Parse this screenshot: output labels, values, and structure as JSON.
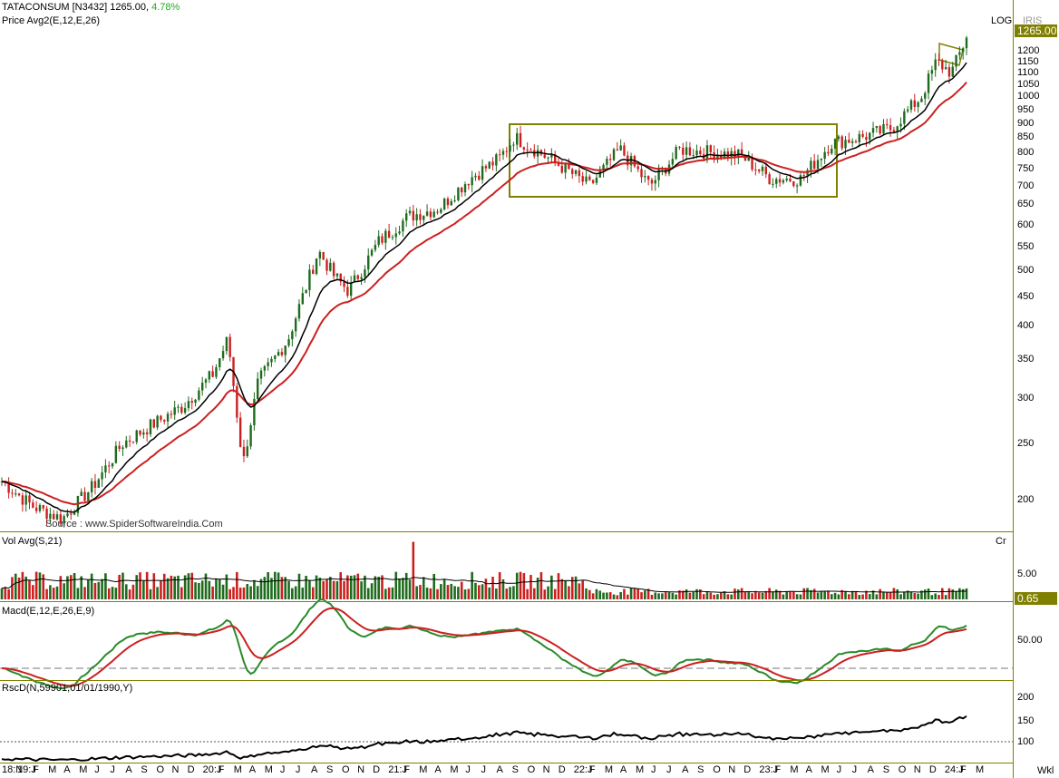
{
  "header": {
    "symbol": "TATACONSUM [N3432]",
    "price": "1265.00,",
    "change": "4.78%",
    "change_color": "#22aa22",
    "price_indicator": "Price  Avg2(E,12,E,26)",
    "log_label": "LOG",
    "brand": "IRIS",
    "last_price_badge": "1265.00"
  },
  "source_note": "Source : www.SpiderSoftwareIndia.Com",
  "volume_panel": {
    "title": "Vol  Avg(S,21)",
    "unit": "Cr",
    "tick": "5.00",
    "last_badge": "0.65"
  },
  "macd_panel": {
    "title": "Macd(E,12,E,26,E,9)",
    "tick": "50.00"
  },
  "rsc_panel": {
    "title": "RscD(N,59901,01/01/1990,Y)",
    "ticks": [
      "200",
      "150",
      "100"
    ]
  },
  "price_ticks": [
    "1200",
    "1150",
    "1100",
    "1050",
    "1000",
    "950",
    "900",
    "850",
    "800",
    "750",
    "700",
    "650",
    "600",
    "550",
    "500",
    "450",
    "400",
    "350",
    "300",
    "250",
    "200"
  ],
  "x_axis": {
    "labels": [
      "18:N",
      "19:J",
      "F",
      "M",
      "A",
      "M",
      "J",
      "J",
      "A",
      "S",
      "O",
      "N",
      "D",
      "20:J",
      "F",
      "M",
      "A",
      "M",
      "J",
      "J",
      "A",
      "S",
      "O",
      "N",
      "D",
      "21:J",
      "F",
      "M",
      "A",
      "M",
      "J",
      "J",
      "A",
      "S",
      "O",
      "N",
      "D",
      "22:J",
      "F",
      "M",
      "A",
      "M",
      "J",
      "J",
      "A",
      "S",
      "O",
      "N",
      "D",
      "23:J",
      "F",
      "M",
      "A",
      "M",
      "J",
      "J",
      "A",
      "S",
      "O",
      "N",
      "D",
      "24:J",
      "F",
      "M"
    ],
    "period_label": "Wkl"
  },
  "chart_data": {
    "type": "line",
    "scale": "log",
    "price_range": [
      180,
      1300
    ],
    "series": [
      {
        "name": "Price",
        "color": "#000000",
        "x": [
          "2018-11",
          "2019-01",
          "2019-03",
          "2019-05",
          "2019-07",
          "2019-09",
          "2019-11",
          "2020-01",
          "2020-02",
          "2020-03",
          "2020-04",
          "2020-06",
          "2020-08",
          "2020-09",
          "2020-10",
          "2020-12",
          "2021-02",
          "2021-04",
          "2021-06",
          "2021-08",
          "2021-09",
          "2021-10",
          "2021-12",
          "2022-02",
          "2022-04",
          "2022-06",
          "2022-08",
          "2022-10",
          "2022-12",
          "2023-02",
          "2023-04",
          "2023-06",
          "2023-08",
          "2023-10",
          "2023-12",
          "2024-01",
          "2024-02",
          "2024-03"
        ],
        "values": [
          215,
          195,
          185,
          210,
          250,
          270,
          290,
          330,
          380,
          230,
          320,
          380,
          540,
          490,
          460,
          560,
          620,
          640,
          720,
          780,
          850,
          820,
          760,
          700,
          810,
          700,
          810,
          800,
          790,
          720,
          720,
          830,
          850,
          880,
          1000,
          1150,
          1100,
          1265
        ]
      }
    ],
    "volume_avg_last": 0.65,
    "rsc_range": [
      85,
      215
    ]
  }
}
